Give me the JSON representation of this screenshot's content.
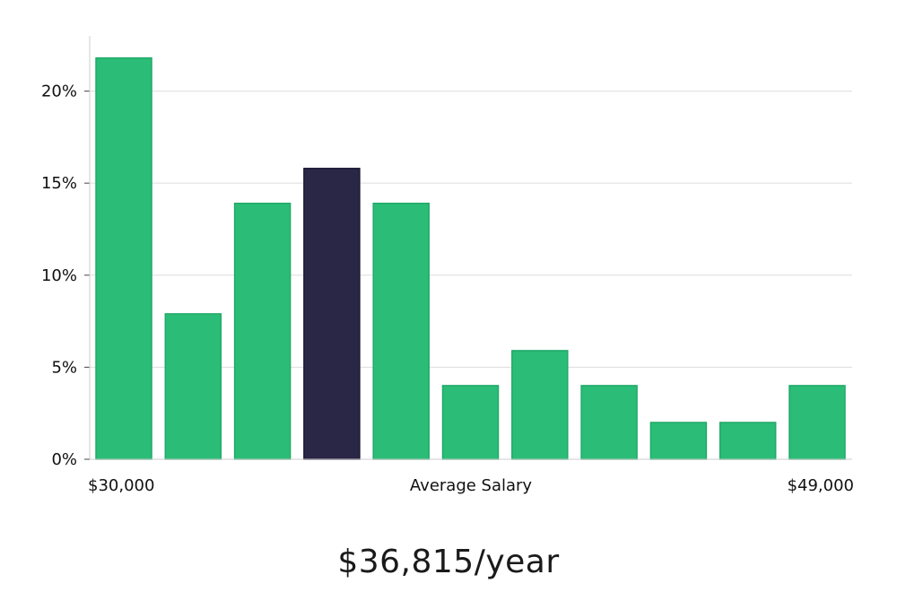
{
  "chart_data": {
    "type": "bar",
    "x_axis": {
      "start_label": "$30,000",
      "center_label": "Average Salary",
      "end_label": "$49,000"
    },
    "y_ticks": [
      {
        "value": 0,
        "label": "0%"
      },
      {
        "value": 5,
        "label": "5%"
      },
      {
        "value": 10,
        "label": "10%"
      },
      {
        "value": 15,
        "label": "15%"
      },
      {
        "value": 20,
        "label": "20%"
      }
    ],
    "ylim": [
      0,
      23
    ],
    "grid": true,
    "values": [
      21.8,
      7.9,
      13.9,
      15.8,
      13.9,
      4.0,
      5.9,
      4.0,
      2.0,
      2.0,
      4.0
    ],
    "highlight_index": 3,
    "colors": {
      "bar": "#2bbd77",
      "bar_stroke": "#22aa68",
      "highlight": "#2a2646",
      "grid": "#dddddd",
      "axis": "#cccccc"
    }
  },
  "summary": {
    "salary_text": "$36,815/year"
  }
}
